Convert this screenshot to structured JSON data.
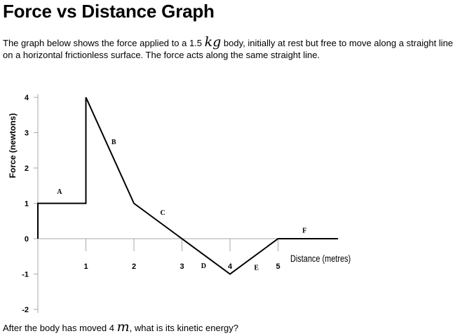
{
  "title": "Force vs Distance Graph",
  "intro": {
    "before_mass": "The graph below shows the force applied to a 1.5 ",
    "mass_unit": "kg",
    "after_mass": " body, initially at rest but free to move along a straight line on a horizontal frictionless surface. The force acts along the same straight line."
  },
  "question": {
    "before_unit": "After the body has moved 4 ",
    "unit": "m",
    "after_unit": ", what is its kinetic energy?"
  },
  "chart_data": {
    "type": "line",
    "x": [
      0,
      0,
      1,
      1,
      2,
      4,
      5,
      6.25
    ],
    "y": [
      0,
      1,
      1,
      4,
      1,
      -1,
      0,
      0
    ],
    "xlabel": "Distance (metres)",
    "ylabel": "Force (newtons)",
    "xticks": [
      "1",
      "2",
      "3",
      "4",
      "5"
    ],
    "yticks": [
      "-2",
      "-1",
      "0",
      "1",
      "2",
      "3",
      "4"
    ],
    "xlim": [
      0,
      6.25
    ],
    "ylim": [
      -2,
      4
    ],
    "grid": false,
    "segment_labels": [
      {
        "text": "A",
        "x": 0.45,
        "y": 1.35
      },
      {
        "text": "B",
        "x": 1.58,
        "y": 2.75
      },
      {
        "text": "C",
        "x": 2.6,
        "y": 0.75
      },
      {
        "text": "D",
        "x": 3.45,
        "y": -0.75
      },
      {
        "text": "E",
        "x": 4.55,
        "y": -0.8
      },
      {
        "text": "F",
        "x": 5.55,
        "y": 0.25
      }
    ]
  }
}
